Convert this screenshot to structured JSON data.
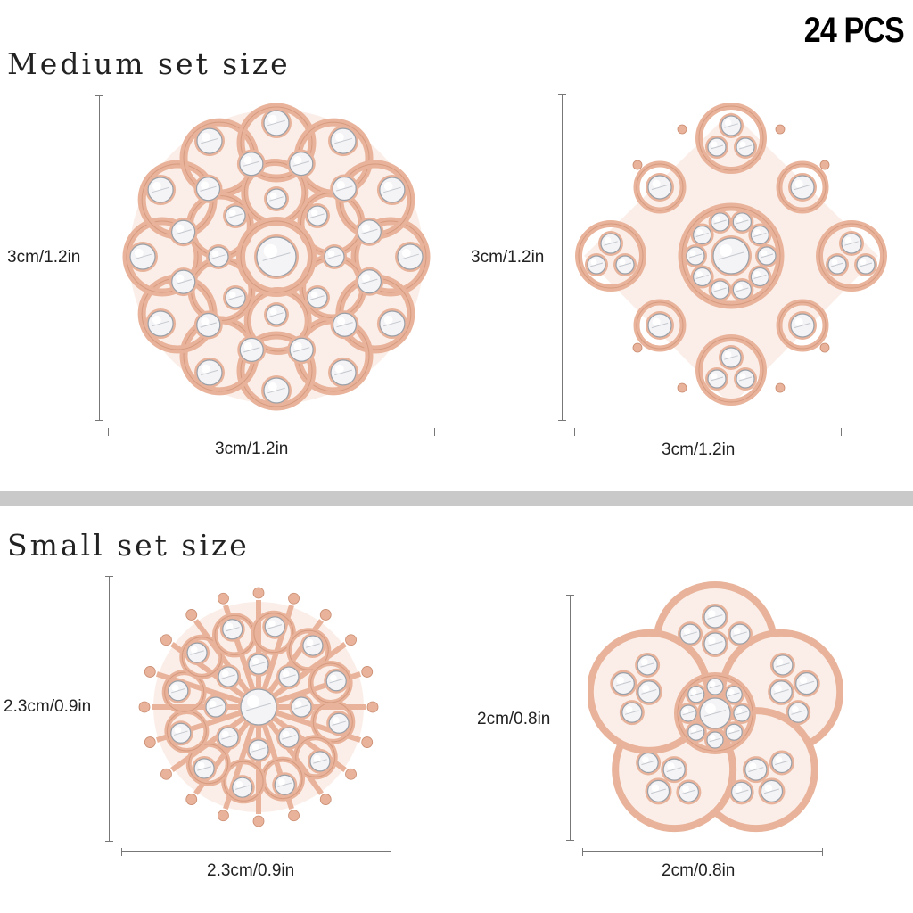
{
  "badge": "24 PCS",
  "sections": [
    {
      "title": "Medium set size",
      "items": [
        {
          "height_label": "3cm/1.2in",
          "width_label": "3cm/1.2in"
        },
        {
          "height_label": "3cm/1.2in",
          "width_label": "3cm/1.2in"
        }
      ]
    },
    {
      "title": "Small set size",
      "items": [
        {
          "height_label": "2.3cm/0.9in",
          "width_label": "2.3cm/0.9in"
        },
        {
          "height_label": "2cm/0.8in",
          "width_label": "2cm/0.8in"
        }
      ]
    }
  ],
  "colors": {
    "metal": "#e8b39a",
    "metal_dark": "#c98b70",
    "crystal": "#f4f4f6",
    "crystal_edge": "#9aa0a8",
    "divider": "#c9c9c9"
  },
  "icons": [
    "round-flower-brooch-icon",
    "square-flower-brooch-icon",
    "starburst-brooch-icon",
    "five-petal-brooch-icon"
  ]
}
